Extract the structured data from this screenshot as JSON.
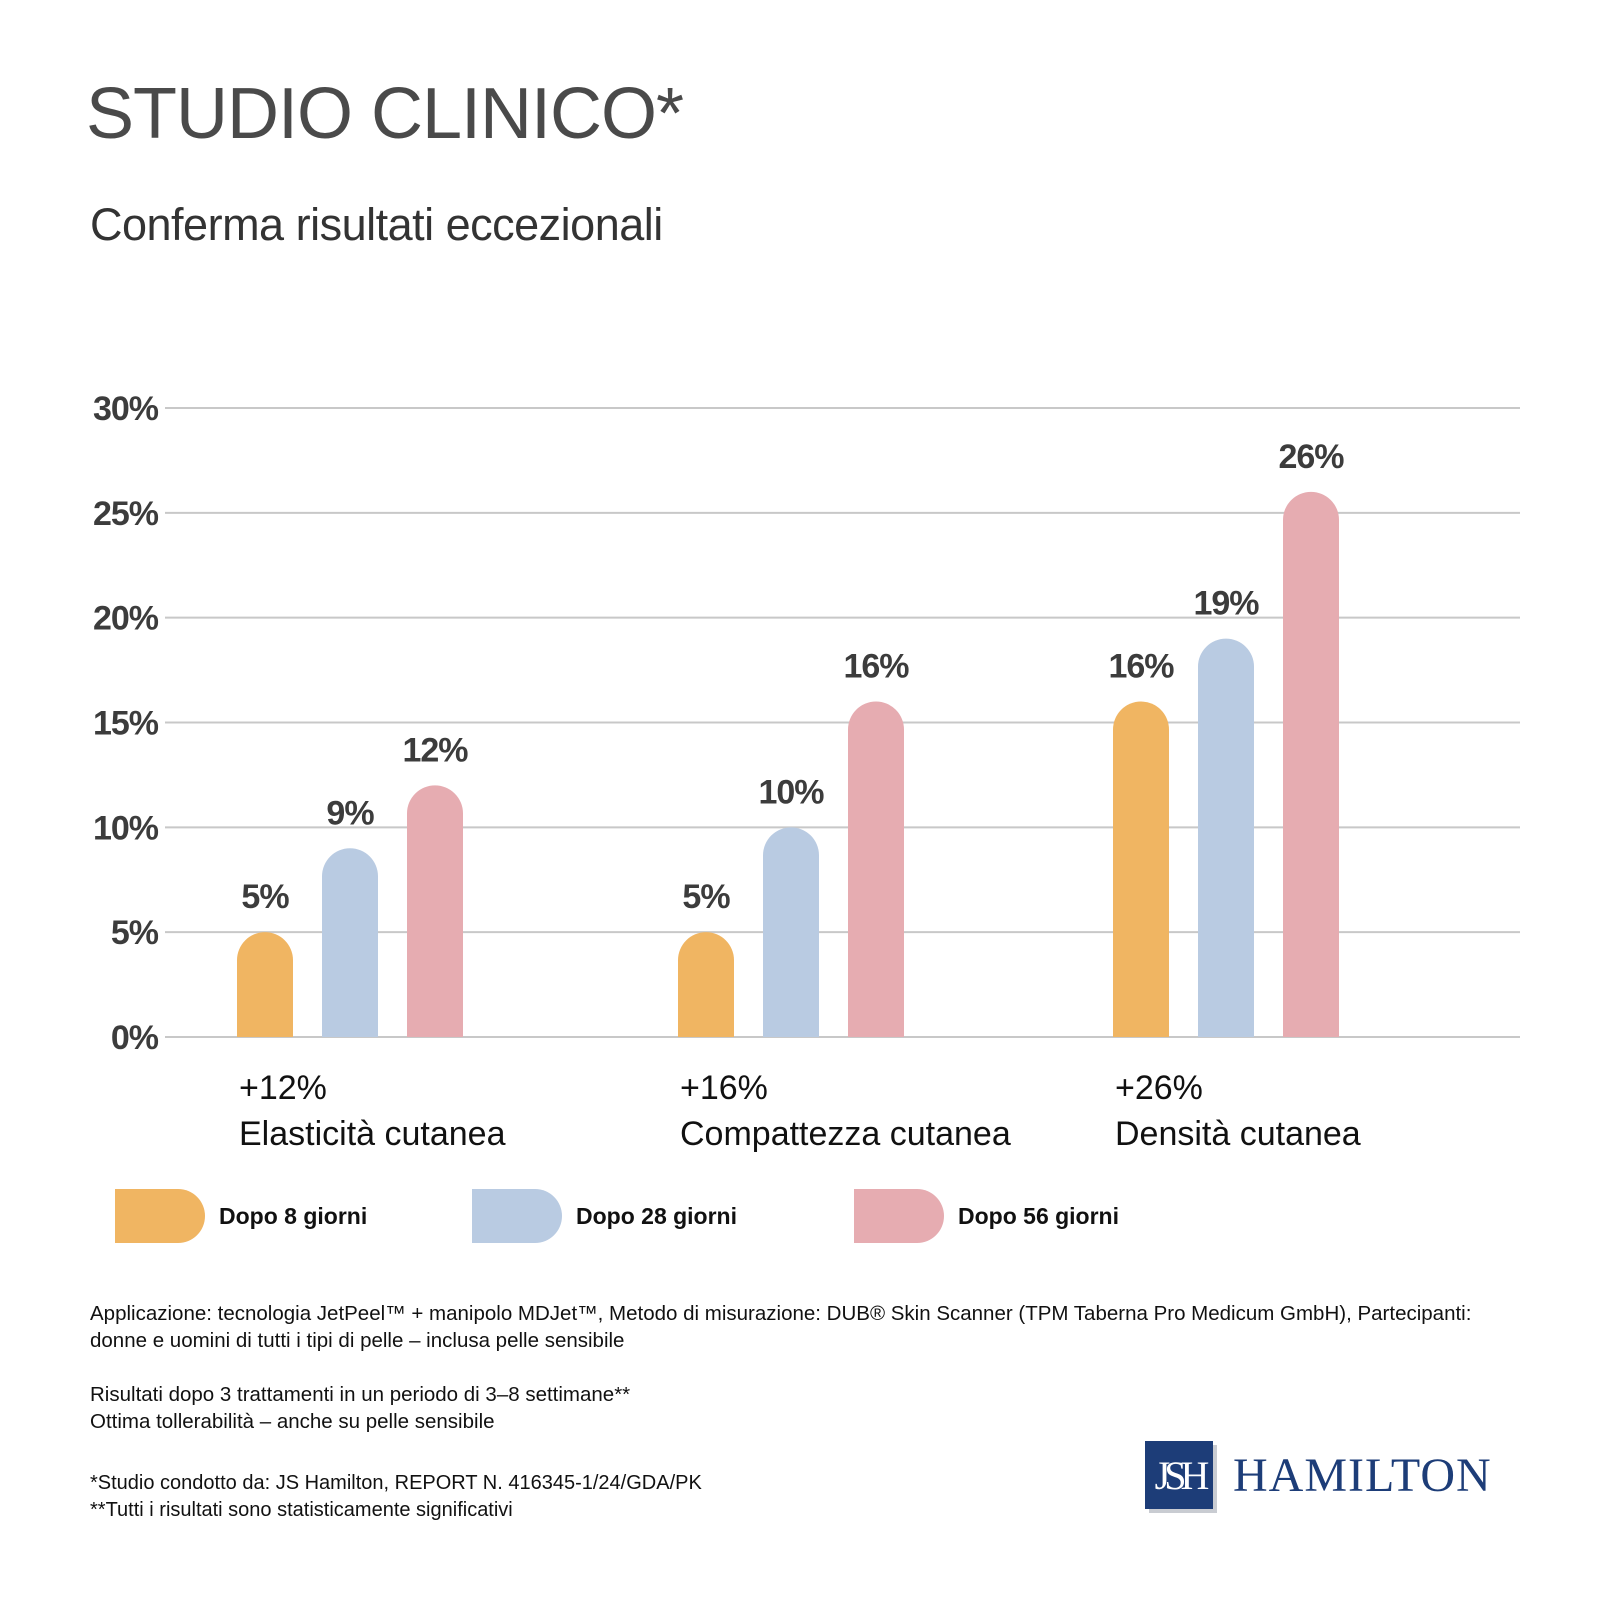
{
  "header": {
    "title": "STUDIO CLINICO*",
    "subtitle": "Conferma risultati eccezionali"
  },
  "chart_data": {
    "type": "bar",
    "categories": [
      "Elasticità cutanea",
      "Compattezza cutanea",
      "Densità cutanea"
    ],
    "category_changes": [
      "+12%",
      "+16%",
      "+26%"
    ],
    "series": [
      {
        "name": "Dopo 8 giorni",
        "values": [
          5,
          5,
          16
        ],
        "labels": [
          "5%",
          "5%",
          "16%"
        ],
        "color": "#f0b562"
      },
      {
        "name": "Dopo 28 giorni",
        "values": [
          9,
          10,
          19
        ],
        "labels": [
          "9%",
          "10%",
          "19%"
        ],
        "color": "#b9cbe2"
      },
      {
        "name": "Dopo 56 giorni",
        "values": [
          12,
          16,
          26
        ],
        "labels": [
          "12%",
          "16%",
          "26%"
        ],
        "color": "#e6acb1"
      }
    ],
    "yticks": [
      "0%",
      "5%",
      "10%",
      "15%",
      "20%",
      "25%",
      "30%"
    ],
    "ylim": [
      0,
      30
    ],
    "grid": true,
    "legend": "bottom"
  },
  "notes": {
    "application": "Applicazione: tecnologia JetPeel™ + manipolo MDJet™, Metodo di misurazione: DUB® Skin Scanner (TPM Taberna Pro Medicum GmbH), Partecipanti: donne e uomini di tutti i tipi di pelle – inclusa pelle sensibile",
    "results": "Risultati dopo 3 trattamenti in un periodo di 3–8 settimane**",
    "tolerability": "Ottima tollerabilità – anche su pelle sensibile"
  },
  "footnotes": {
    "study": "*Studio condotto da: JS Hamilton, REPORT N. 416345-1/24/GDA/PK",
    "significance": "**Tutti i risultati sono statisticamente significativi"
  },
  "logo": {
    "monogram": "JSH",
    "name": "HAMILTON",
    "color": "#1d3d78"
  }
}
